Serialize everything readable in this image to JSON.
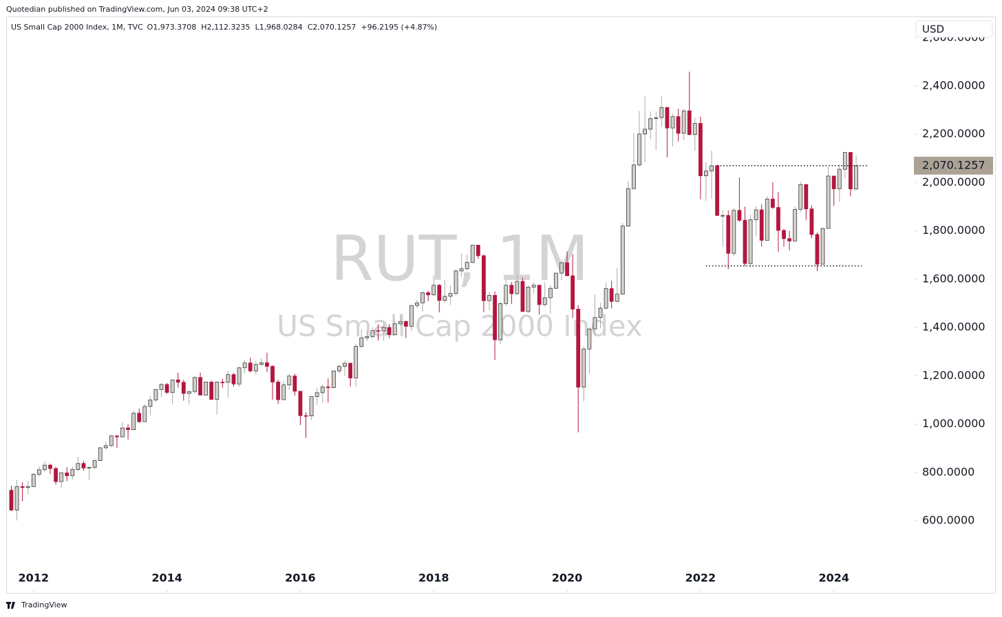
{
  "header": {
    "published": "Quotedian published on TradingView.com, Jun 03, 2024 09:38 UTC+2",
    "footer": "TradingView",
    "currency": "USD"
  },
  "chart_data": {
    "type": "candlestick",
    "title": "US Small Cap 2000 Index, 1M, TVC",
    "ohlc_labels": [
      "O1,973.3708",
      "H2,112.3235",
      "L1,968.0284",
      "C2,070.1257",
      "+96.2195 (+4.87%)"
    ],
    "watermark": [
      "RUT, 1M",
      "US Small Cap 2000 Index"
    ],
    "x": [
      "2011-09",
      "2011-10",
      "2011-11",
      "2011-12",
      "2012-01",
      "2012-02",
      "2012-03",
      "2012-04",
      "2012-05",
      "2012-06",
      "2012-07",
      "2012-08",
      "2012-09",
      "2012-10",
      "2012-11",
      "2012-12",
      "2013-01",
      "2013-02",
      "2013-03",
      "2013-04",
      "2013-05",
      "2013-06",
      "2013-07",
      "2013-08",
      "2013-09",
      "2013-10",
      "2013-11",
      "2013-12",
      "2014-01",
      "2014-02",
      "2014-03",
      "2014-04",
      "2014-05",
      "2014-06",
      "2014-07",
      "2014-08",
      "2014-09",
      "2014-10",
      "2014-11",
      "2014-12",
      "2015-01",
      "2015-02",
      "2015-03",
      "2015-04",
      "2015-05",
      "2015-06",
      "2015-07",
      "2015-08",
      "2015-09",
      "2015-10",
      "2015-11",
      "2015-12",
      "2016-01",
      "2016-02",
      "2016-03",
      "2016-04",
      "2016-05",
      "2016-06",
      "2016-07",
      "2016-08",
      "2016-09",
      "2016-10",
      "2016-11",
      "2016-12",
      "2017-01",
      "2017-02",
      "2017-03",
      "2017-04",
      "2017-05",
      "2017-06",
      "2017-07",
      "2017-08",
      "2017-09",
      "2017-10",
      "2017-11",
      "2017-12",
      "2018-01",
      "2018-02",
      "2018-03",
      "2018-04",
      "2018-05",
      "2018-06",
      "2018-07",
      "2018-08",
      "2018-09",
      "2018-10",
      "2018-11",
      "2018-12",
      "2019-01",
      "2019-02",
      "2019-03",
      "2019-04",
      "2019-05",
      "2019-06",
      "2019-07",
      "2019-08",
      "2019-09",
      "2019-10",
      "2019-11",
      "2019-12",
      "2020-01",
      "2020-02",
      "2020-03",
      "2020-04",
      "2020-05",
      "2020-06",
      "2020-07",
      "2020-08",
      "2020-09",
      "2020-10",
      "2020-11",
      "2020-12",
      "2021-01",
      "2021-02",
      "2021-03",
      "2021-04",
      "2021-05",
      "2021-06",
      "2021-07",
      "2021-08",
      "2021-09",
      "2021-10",
      "2021-11",
      "2021-12",
      "2022-01",
      "2022-02",
      "2022-03",
      "2022-04",
      "2022-05",
      "2022-06",
      "2022-07",
      "2022-08",
      "2022-09",
      "2022-10",
      "2022-11",
      "2022-12",
      "2023-01",
      "2023-02",
      "2023-03",
      "2023-04",
      "2023-05",
      "2023-06",
      "2023-07",
      "2023-08",
      "2023-09",
      "2023-10",
      "2023-11",
      "2023-12",
      "2024-01",
      "2024-02",
      "2024-03",
      "2024-04",
      "2024-05"
    ],
    "open": [
      726,
      644,
      741,
      737,
      741,
      792,
      811,
      830,
      816,
      762,
      798,
      786,
      812,
      837,
      818,
      821,
      849,
      902,
      911,
      951,
      947,
      984,
      977,
      1045,
      1010,
      1073,
      1100,
      1143,
      1164,
      1131,
      1183,
      1173,
      1127,
      1135,
      1193,
      1120,
      1174,
      1102,
      1174,
      1173,
      1205,
      1166,
      1233,
      1253,
      1220,
      1247,
      1254,
      1239,
      1174,
      1101,
      1162,
      1199,
      1136,
      1035,
      1034,
      1114,
      1130,
      1154,
      1151,
      1220,
      1239,
      1252,
      1191,
      1322,
      1357,
      1362,
      1387,
      1386,
      1400,
      1370,
      1415,
      1425,
      1405,
      1491,
      1502,
      1544,
      1535,
      1575,
      1512,
      1529,
      1541,
      1634,
      1643,
      1670,
      1741,
      1697,
      1511,
      1533,
      1349,
      1499,
      1575,
      1540,
      1591,
      1466,
      1567,
      1575,
      1495,
      1523,
      1562,
      1625,
      1668,
      1614,
      1476,
      1153,
      1311,
      1394,
      1441,
      1480,
      1561,
      1508,
      1538,
      1820,
      1975,
      2073,
      2201,
      2221,
      2265,
      2269,
      2311,
      2226,
      2273,
      2204,
      2297,
      2199,
      2245,
      2028,
      2048,
      2070,
      1864,
      1864,
      1707,
      1885,
      1844,
      1665,
      1846,
      1887,
      1761,
      1932,
      1897,
      1802,
      1768,
      1758,
      1889,
      1992,
      1891,
      1785,
      1662,
      1810,
      2027,
      1974,
      2055,
      2125,
      1973.3708
    ],
    "high": [
      745,
      769,
      759,
      765,
      797,
      826,
      846,
      836,
      823,
      799,
      822,
      825,
      864,
      848,
      823,
      853,
      903,
      928,
      953,
      954,
      1008,
      999,
      1056,
      1064,
      1082,
      1117,
      1143,
      1170,
      1170,
      1183,
      1213,
      1183,
      1135,
      1198,
      1213,
      1175,
      1179,
      1174,
      1187,
      1220,
      1212,
      1236,
      1267,
      1275,
      1262,
      1273,
      1296,
      1244,
      1184,
      1180,
      1207,
      1208,
      1136,
      1049,
      1114,
      1150,
      1164,
      1190,
      1221,
      1247,
      1262,
      1254,
      1331,
      1392,
      1388,
      1401,
      1414,
      1419,
      1414,
      1425,
      1452,
      1428,
      1491,
      1514,
      1548,
      1552,
      1616,
      1580,
      1597,
      1575,
      1640,
      1706,
      1702,
      1742,
      1742,
      1702,
      1548,
      1549,
      1507,
      1600,
      1588,
      1618,
      1605,
      1573,
      1587,
      1576,
      1587,
      1574,
      1626,
      1680,
      1715,
      1704,
      1492,
      1322,
      1401,
      1537,
      1502,
      1586,
      1593,
      1647,
      1832,
      2007,
      2205,
      2296,
      2360,
      2294,
      2294,
      2357,
      2313,
      2285,
      2305,
      2305,
      2459,
      2269,
      2272,
      2085,
      2133,
      2073,
      1885,
      1885,
      1893,
      2021,
      1900,
      1867,
      1902,
      1910,
      1944,
      2001,
      1960,
      1808,
      1800,
      1900,
      2004,
      1994,
      1906,
      1793,
      1814,
      2066,
      2027,
      2075,
      2125,
      2126,
      2112.3235
    ],
    "low": [
      640,
      601,
      680,
      709,
      741,
      781,
      802,
      793,
      750,
      737,
      764,
      770,
      805,
      807,
      770,
      813,
      849,
      895,
      904,
      901,
      944,
      936,
      977,
      1005,
      1009,
      1036,
      1092,
      1112,
      1125,
      1082,
      1151,
      1097,
      1082,
      1127,
      1120,
      1120,
      1102,
      1040,
      1150,
      1110,
      1155,
      1154,
      1209,
      1215,
      1204,
      1240,
      1215,
      1101,
      1083,
      1100,
      1141,
      1118,
      996,
      943,
      1016,
      1080,
      1090,
      1089,
      1150,
      1210,
      1200,
      1156,
      1156,
      1316,
      1344,
      1355,
      1346,
      1345,
      1356,
      1368,
      1407,
      1356,
      1385,
      1480,
      1466,
      1509,
      1530,
      1463,
      1501,
      1494,
      1532,
      1610,
      1636,
      1665,
      1685,
      1464,
      1471,
      1266,
      1330,
      1490,
      1497,
      1535,
      1465,
      1461,
      1541,
      1454,
      1486,
      1456,
      1561,
      1597,
      1614,
      1439,
      966,
      1095,
      1210,
      1365,
      1397,
      1475,
      1479,
      1505,
      1538,
      1816,
      1975,
      2067,
      2085,
      2180,
      2135,
      2231,
      2105,
      2150,
      2170,
      2175,
      2195,
      2132,
      1931,
      1924,
      1934,
      1861,
      1733,
      1641,
      1695,
      1838,
      1655,
      1650,
      1777,
      1735,
      1761,
      1891,
      1713,
      1734,
      1719,
      1758,
      1877,
      1845,
      1769,
      1633,
      1662,
      1810,
      1904,
      1921,
      2017,
      1943,
      1968.0284
    ],
    "close": [
      644,
      741,
      737,
      741,
      792,
      811,
      830,
      816,
      762,
      798,
      786,
      812,
      837,
      818,
      821,
      849,
      902,
      911,
      951,
      947,
      984,
      977,
      1045,
      1010,
      1073,
      1100,
      1143,
      1164,
      1131,
      1183,
      1173,
      1127,
      1135,
      1193,
      1120,
      1174,
      1102,
      1174,
      1173,
      1205,
      1166,
      1233,
      1253,
      1220,
      1247,
      1254,
      1239,
      1174,
      1101,
      1162,
      1199,
      1136,
      1035,
      1034,
      1114,
      1130,
      1154,
      1151,
      1220,
      1239,
      1252,
      1191,
      1322,
      1357,
      1362,
      1387,
      1386,
      1400,
      1370,
      1415,
      1425,
      1405,
      1491,
      1502,
      1544,
      1535,
      1575,
      1512,
      1529,
      1541,
      1634,
      1643,
      1670,
      1741,
      1697,
      1511,
      1533,
      1349,
      1499,
      1575,
      1540,
      1591,
      1466,
      1567,
      1575,
      1495,
      1523,
      1562,
      1625,
      1668,
      1614,
      1476,
      1153,
      1311,
      1394,
      1441,
      1480,
      1561,
      1508,
      1538,
      1820,
      1975,
      2073,
      2201,
      2221,
      2265,
      2269,
      2311,
      2226,
      2273,
      2204,
      2297,
      2199,
      2245,
      2028,
      2048,
      2070,
      1864,
      1864,
      1707,
      1885,
      1844,
      1665,
      1846,
      1887,
      1761,
      1932,
      1897,
      1802,
      1768,
      1758,
      1889,
      1992,
      1891,
      1785,
      1662,
      1810,
      2027,
      1974,
      2055,
      2125,
      1974,
      2070.1257
    ],
    "colors": {
      "up": "#d3cfc9",
      "up_border": "#3a3a3a",
      "up_wick": "#a8a8a8",
      "down": "#b3173f",
      "down_wick": "#b3173f"
    },
    "levels": [
      {
        "value": 2070,
        "from": "2022-04",
        "to": "2024-07"
      },
      {
        "value": 1655,
        "from": "2022-02",
        "to": "2024-06"
      }
    ],
    "last_price": {
      "value": 2070.1257,
      "label": "2,070.1257"
    },
    "xlim": [
      2011.6,
      2025.2
    ],
    "xticks": [
      2012,
      2014,
      2016,
      2018,
      2020,
      2022,
      2024
    ],
    "ylim": [
      300,
      2700
    ],
    "yticks": [
      {
        "value": 600,
        "label": "600.0000"
      },
      {
        "value": 800,
        "label": "800.0000"
      },
      {
        "value": 1000,
        "label": "1,000.0000"
      },
      {
        "value": 1200,
        "label": "1,200.0000"
      },
      {
        "value": 1400,
        "label": "1,400.0000"
      },
      {
        "value": 1600,
        "label": "1,600.0000"
      },
      {
        "value": 1800,
        "label": "1,800.0000"
      },
      {
        "value": 2000,
        "label": "2,000.0000"
      },
      {
        "value": 2200,
        "label": "2,200.0000"
      },
      {
        "value": 2400,
        "label": "2,400.0000"
      },
      {
        "value": 2600,
        "label": "2,600.0000"
      }
    ],
    "grid": false
  }
}
